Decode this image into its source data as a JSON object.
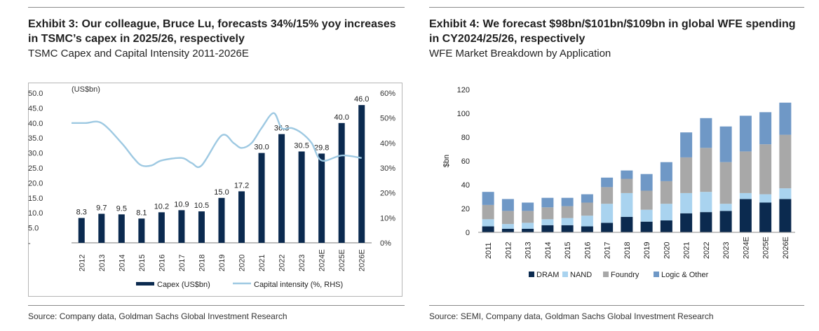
{
  "left": {
    "title": "Exhibit 3: Our colleague, Bruce Lu, forecasts 34%/15% yoy increases in TSMC’s capex in 2025/26, respectively",
    "subtitle": "TSMC Capex and Capital Intensity 2011-2026E",
    "source": "Source: Company data, Goldman Sachs Global Investment Research"
  },
  "right": {
    "title": "Exhibit 4: We forecast $98bn/$101bn/$109bn in global WFE spending in CY2024/25/26, respectively",
    "subtitle": "WFE Market Breakdown by Application",
    "source": "Source: SEMI, Company data, Goldman Sachs Global Investment Research"
  },
  "chart_data": [
    {
      "type": "bar",
      "unit_label": "(US$bn)",
      "categories": [
        "2012",
        "2013",
        "2014",
        "2015",
        "2016",
        "2017",
        "2018",
        "2019",
        "2020",
        "2021",
        "2022",
        "2023",
        "2024E",
        "2025E",
        "2026E"
      ],
      "series": [
        {
          "name": "Capex (US$bn)",
          "type": "bar",
          "axis": "left",
          "color": "#0b2a4f",
          "values": [
            8.3,
            9.7,
            9.5,
            8.1,
            10.2,
            10.9,
            10.5,
            15.0,
            17.2,
            30.0,
            36.3,
            30.5,
            29.8,
            40.0,
            46.0
          ],
          "labels": [
            "8.3",
            "9.7",
            "9.5",
            "8.1",
            "10.2",
            "10.9",
            "10.5",
            "15.0",
            "17.2",
            "30.0",
            "36.3",
            "30.5",
            "29.8",
            "40.0",
            "46.0"
          ]
        },
        {
          "name": "Capital intensity (%, RHS)",
          "type": "line",
          "axis": "right",
          "color": "#9ec9e2",
          "x": [
            2011.5,
            2012.2,
            2013,
            2014,
            2014.6,
            2015,
            2015.5,
            2016,
            2017,
            2017.5,
            2018,
            2019,
            2019.6,
            2020,
            2020.5,
            2021,
            2021.6,
            2022,
            2022.5,
            2023,
            2023.5,
            2024,
            2025,
            2026
          ],
          "values": [
            48,
            48,
            48,
            40,
            34,
            31,
            31,
            33,
            34,
            32,
            31,
            43,
            40,
            38,
            40,
            46,
            52,
            46,
            46,
            44,
            40,
            33,
            35,
            34
          ]
        }
      ],
      "y_left": {
        "min": 0,
        "max": 50,
        "ticks": [
          50.0,
          45.0,
          40.0,
          35.0,
          30.0,
          25.0,
          20.0,
          15.0,
          10.0,
          5.0,
          0
        ],
        "tick_labels": [
          "50.0",
          "45.0",
          "40.0",
          "35.0",
          "30.0",
          "25.0",
          "20.0",
          "15.0",
          "10.0",
          "5.0",
          "-"
        ]
      },
      "y_right": {
        "min": 0,
        "max": 60,
        "ticks": [
          60,
          50,
          40,
          30,
          20,
          10,
          0
        ],
        "tick_labels": [
          "60%",
          "50%",
          "40%",
          "30%",
          "20%",
          "10%",
          "0%"
        ]
      },
      "legend": {
        "position": "bottom",
        "entries": [
          "Capex (US$bn)",
          "Capital intensity (%, RHS)"
        ]
      },
      "grid": false
    },
    {
      "type": "bar",
      "stacked": true,
      "ylabel": "$bn",
      "categories": [
        "2011",
        "2012",
        "2013",
        "2014",
        "2015",
        "2016",
        "2017",
        "2018",
        "2019",
        "2020",
        "2021",
        "2022",
        "2023",
        "2024E",
        "2025E",
        "2026E"
      ],
      "series": [
        {
          "name": "DRAM",
          "color": "#0b2a4f",
          "values": [
            5,
            3,
            3,
            6,
            6,
            5,
            8,
            13,
            9,
            10,
            16,
            17,
            18,
            28,
            25,
            28
          ]
        },
        {
          "name": "NAND",
          "color": "#a9d3ef",
          "values": [
            6,
            4,
            5,
            5,
            6,
            9,
            16,
            20,
            10,
            14,
            17,
            17,
            6,
            5,
            7,
            9
          ]
        },
        {
          "name": "Foundry",
          "color": "#a8a8a8",
          "values": [
            12,
            11,
            10,
            10,
            10,
            11,
            14,
            12,
            16,
            19,
            30,
            37,
            35,
            35,
            42,
            45
          ]
        },
        {
          "name": "Logic & Other",
          "color": "#6f98c6",
          "values": [
            11,
            10,
            7,
            8,
            7,
            7,
            8,
            7,
            14,
            16,
            21,
            25,
            30,
            30,
            27,
            27
          ]
        }
      ],
      "y": {
        "min": 0,
        "max": 120,
        "ticks": [
          0,
          20,
          40,
          60,
          80,
          100,
          120
        ],
        "tick_labels": [
          "0",
          "20",
          "40",
          "60",
          "80",
          "100",
          "120"
        ]
      },
      "legend": {
        "position": "bottom",
        "entries": [
          "DRAM",
          "NAND",
          "Foundry",
          "Logic & Other"
        ]
      },
      "grid": false
    }
  ]
}
